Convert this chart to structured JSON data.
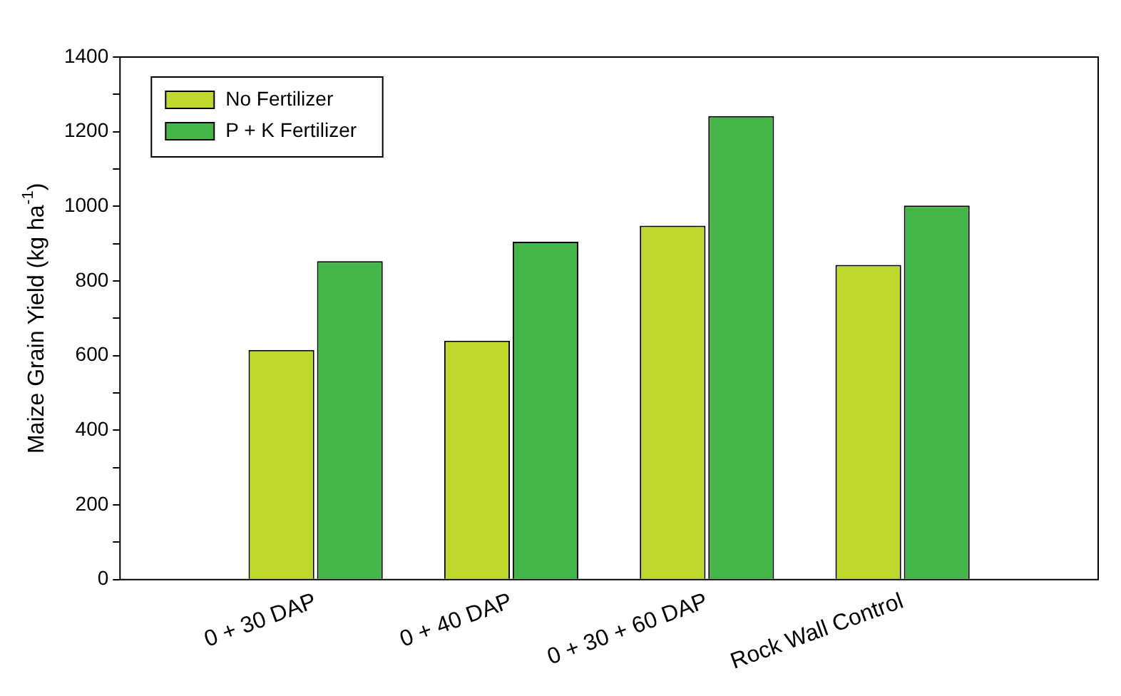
{
  "chart_data": {
    "type": "bar",
    "ylabel": "Maize Grain Yield (kg ha$^{-1}$)",
    "categories": [
      "0 + 30 DAP",
      "0 + 40 DAP",
      "0 + 30 + 60 DAP",
      "Rock Wall Control"
    ],
    "series": [
      {
        "name": "No Fertilizer",
        "color": "#c0d82e",
        "values": [
          615,
          640,
          948,
          843
        ]
      },
      {
        "name": "P + K Fertilizer",
        "color": "#44b649",
        "values": [
          853,
          905,
          1242,
          1002
        ]
      }
    ],
    "ylim": [
      0,
      1400
    ],
    "yticks": [
      0,
      {
        "value": 100,
        "label": null
      },
      200,
      {
        "value": 300,
        "label": null
      },
      400,
      {
        "value": 500,
        "label": null
      },
      600,
      {
        "value": 700,
        "label": null
      },
      800,
      {
        "value": 900,
        "label": null
      },
      1000,
      {
        "value": 1100,
        "label": null
      },
      1200,
      {
        "value": 1300,
        "label": null
      },
      1400
    ],
    "grid": false,
    "legend": "top left"
  }
}
